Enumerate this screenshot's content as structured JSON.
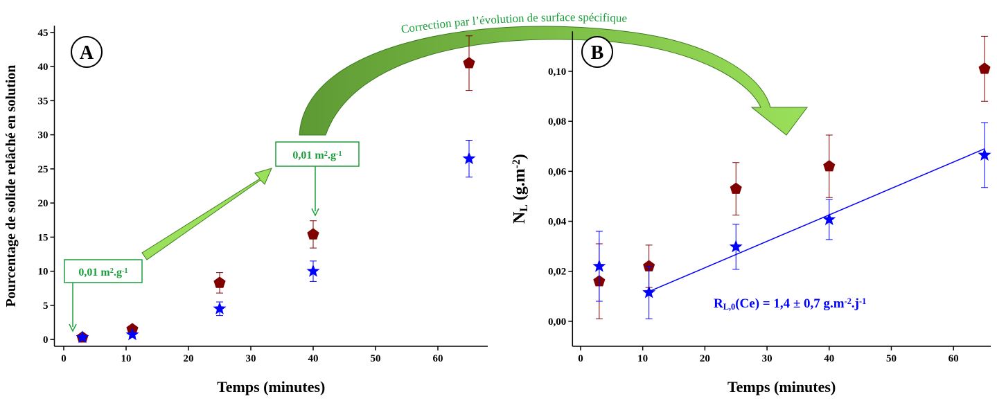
{
  "chart_data": [
    {
      "type": "scatter",
      "label": "A",
      "xlabel": [
        "Temps (minutes)"
      ],
      "ylabel": [
        "Pourcentage de solide relâché en solution"
      ],
      "xlim": [
        -1.5,
        68
      ],
      "xticks": [
        0,
        10,
        20,
        30,
        40,
        50,
        60
      ],
      "ylim": [
        -1,
        46
      ],
      "yticks": [
        0,
        5,
        10,
        15,
        20,
        25,
        30,
        35,
        40,
        45
      ],
      "series": [
        {
          "marker": "pentagon",
          "color": "#800000",
          "x": [
            3,
            11,
            25,
            40,
            65
          ],
          "values": [
            0.3,
            1.5,
            8.3,
            15.4,
            40.5
          ],
          "errors": [
            0.2,
            0.3,
            1.5,
            2,
            4
          ]
        },
        {
          "marker": "star",
          "color": "#0000ff",
          "x": [
            3,
            11,
            25,
            40,
            65
          ],
          "values": [
            0.3,
            0.7,
            4.5,
            10,
            26.5
          ],
          "errors": [
            0.2,
            0.3,
            1,
            1.5,
            2.7
          ]
        }
      ]
    },
    {
      "type": "scatter",
      "label": "B",
      "xlabel": [
        "Temps (minutes)"
      ],
      "ylabel": [
        "N",
        {
          "sub": "L"
        },
        " (g.m",
        {
          "sup": "-2"
        },
        ")"
      ],
      "xlim": [
        -1.3,
        66
      ],
      "xticks": [
        0,
        10,
        20,
        30,
        40,
        50,
        60
      ],
      "ylim": [
        -0.01,
        0.116
      ],
      "yticks": [
        {
          "value": 0,
          "label": "0,00"
        },
        {
          "value": 0.02,
          "label": "0,02"
        },
        {
          "value": 0.04,
          "label": "0,04"
        },
        {
          "value": 0.06,
          "label": "0,06"
        },
        {
          "value": 0.08,
          "label": "0,08"
        },
        {
          "value": 0.1,
          "label": "0,10"
        }
      ],
      "series": [
        {
          "marker": "pentagon",
          "color": "#800000",
          "x": [
            3,
            11,
            25,
            40,
            65
          ],
          "values": [
            0.016,
            0.022,
            0.053,
            0.062,
            0.101
          ],
          "errors": [
            0.015,
            0.0085,
            0.0105,
            0.0125,
            0.013
          ]
        },
        {
          "marker": "star",
          "color": "#0000ff",
          "x": [
            3,
            11,
            25,
            40,
            65
          ],
          "values": [
            0.022,
            0.0115,
            0.0298,
            0.0407,
            0.0665
          ],
          "errors": [
            0.014,
            0.0105,
            0.009,
            0.008,
            0.013
          ]
        }
      ],
      "fit": {
        "color": "#0000ff",
        "x": [
          11,
          65
        ],
        "values": [
          0.0119,
          0.069
        ]
      },
      "annotation": [
        "R",
        {
          "sub": "L,0"
        },
        "(Ce) = 1,4 ± 0,7 g.m",
        {
          "sup": "-2"
        },
        ".j",
        {
          "sup": "-1"
        }
      ]
    }
  ],
  "annotations": {
    "correction": "Correction par l’évolution de surface spécifique",
    "box1": [
      "0,01 m",
      {
        "sup": "2"
      },
      ".g",
      {
        "sup": "-1"
      }
    ],
    "box2": [
      "0,01 m",
      {
        "sup": "2"
      },
      ".g",
      {
        "sup": "-1"
      }
    ]
  }
}
